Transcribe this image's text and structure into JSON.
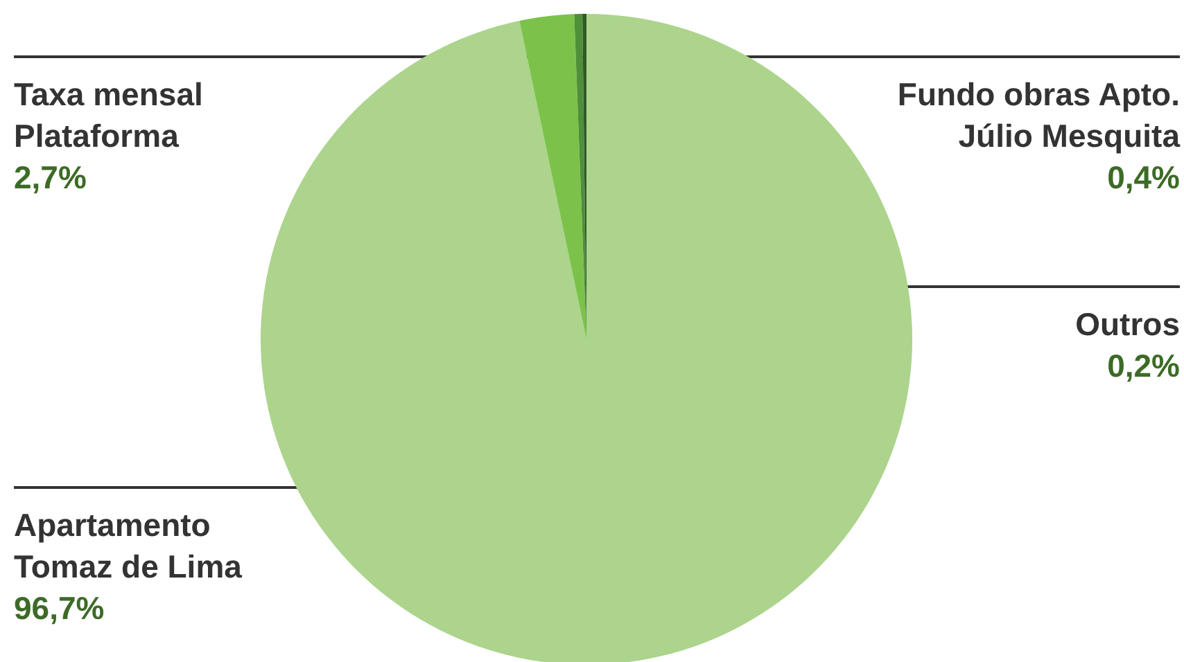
{
  "chart_data": {
    "type": "pie",
    "categories": [
      "Apartamento\nTomaz de Lima",
      "Taxa mensal\nPlataforma",
      "Fundo obras Apto.\nJúlio Mesquita",
      "Outros"
    ],
    "values": [
      96.7,
      2.7,
      0.4,
      0.2
    ],
    "colors": [
      "#acd48c",
      "#7cc24a",
      "#4f8f3a",
      "#2f5a26"
    ],
    "value_labels": [
      "96,7%",
      "2,7%",
      "0,4%",
      "0,2%"
    ],
    "legend": false
  }
}
